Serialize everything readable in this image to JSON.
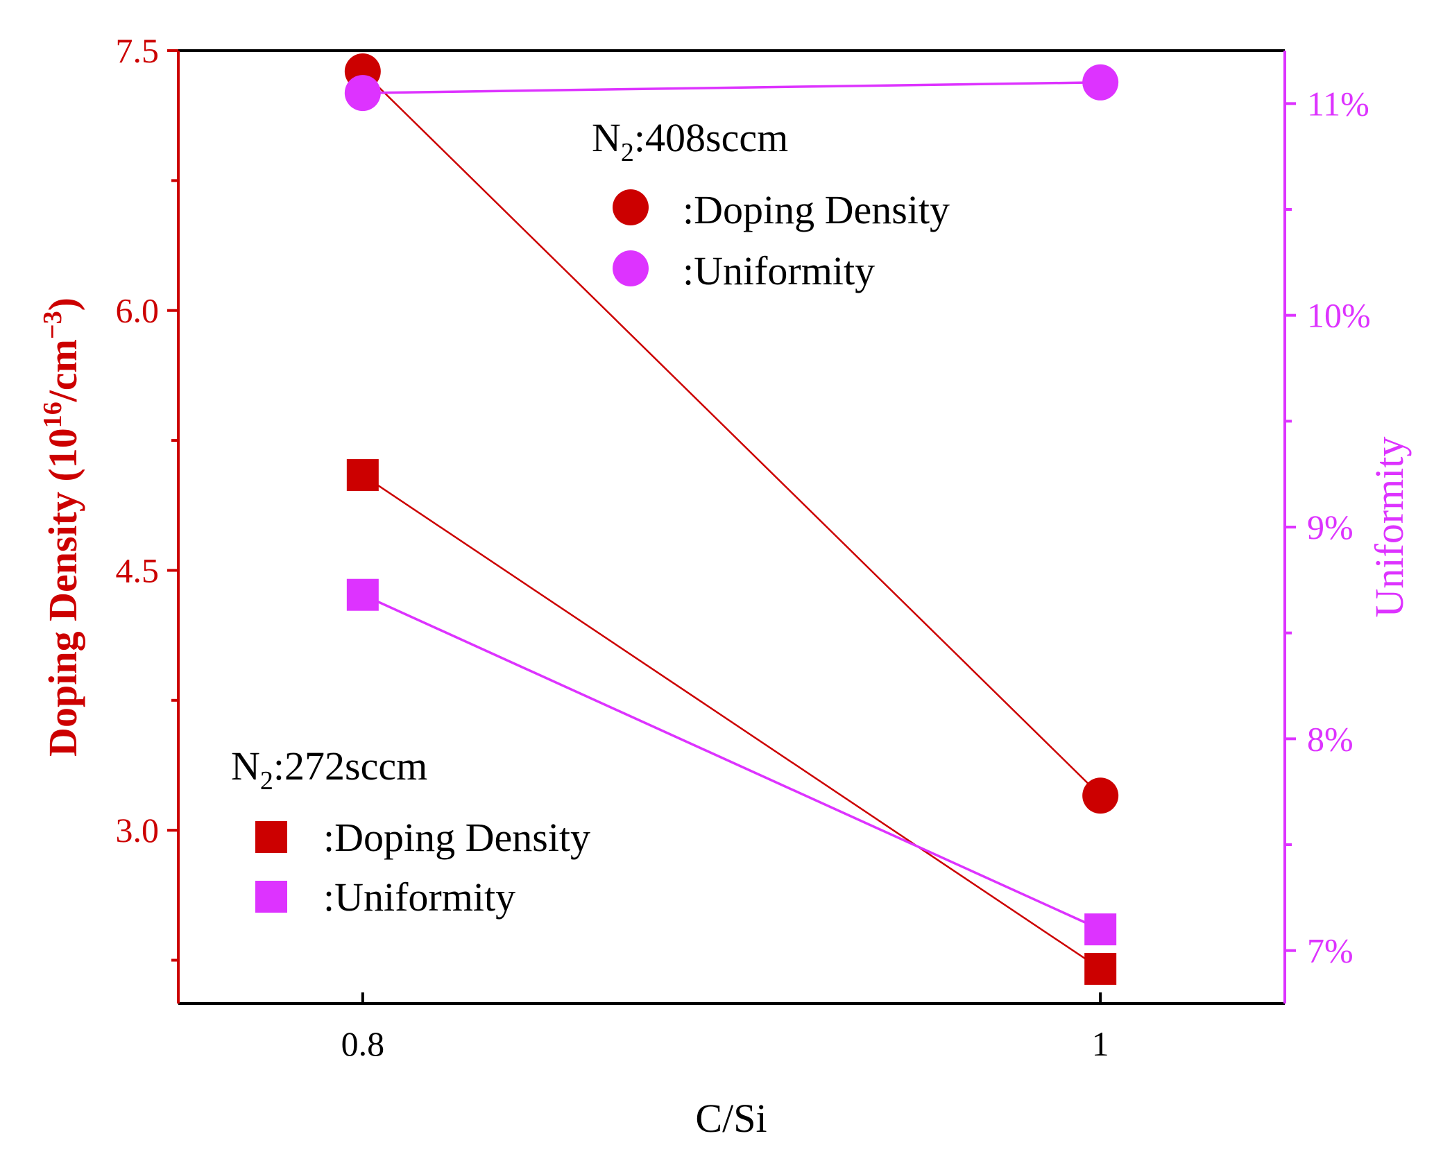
{
  "chart_data": {
    "type": "line",
    "x": [
      0.8,
      1
    ],
    "xlim": [
      0.75,
      1.05
    ],
    "xticks": [
      "0.8",
      "1"
    ],
    "xlabel": "C/Si",
    "y_left": {
      "label_main": "Doping Density (10",
      "label_sup1": "16",
      "label_mid": "/cm",
      "label_sup2": "−3",
      "label_end": ")",
      "lim": [
        2.0,
        7.5
      ],
      "ticks": [
        3.0,
        4.5,
        6.0,
        7.5
      ],
      "tick_labels": [
        "3.0",
        "4.5",
        "6.0",
        "7.5"
      ],
      "minor_ticks": [
        2.25,
        3.75,
        5.25,
        6.75
      ],
      "color": "#cc0000"
    },
    "y_right": {
      "label": "Uniformity",
      "lim": [
        6.75,
        11.25
      ],
      "ticks": [
        7,
        8,
        9,
        10,
        11
      ],
      "tick_labels": [
        "7%",
        "8%",
        "9%",
        "10%",
        "11%"
      ],
      "minor_ticks": [
        7.5,
        8.5,
        9.5,
        10.5
      ],
      "color": "#dd33ff"
    },
    "series": [
      {
        "name": "408sccm Doping Density",
        "axis": "left",
        "marker": "circle",
        "color": "#cc0000",
        "values": [
          7.38,
          3.2
        ]
      },
      {
        "name": "408sccm Uniformity",
        "axis": "right",
        "marker": "circle",
        "color": "#dd33ff",
        "values": [
          11.05,
          11.1
        ]
      },
      {
        "name": "272sccm Doping Density",
        "axis": "left",
        "marker": "square",
        "color": "#cc0000",
        "values": [
          5.05,
          2.2
        ]
      },
      {
        "name": "272sccm Uniformity",
        "axis": "right",
        "marker": "square",
        "color": "#dd33ff",
        "values": [
          8.68,
          7.1
        ]
      }
    ],
    "legends": [
      {
        "title_main": "N",
        "title_sub": "2",
        "title_rest": ":408sccm",
        "entries": [
          {
            "label": ":Doping Density",
            "marker": "circle",
            "color": "#cc0000"
          },
          {
            "label": ":Uniformity",
            "marker": "circle",
            "color": "#dd33ff"
          }
        ]
      },
      {
        "title_main": "N",
        "title_sub": "2",
        "title_rest": ":272sccm",
        "entries": [
          {
            "label": ":Doping Density",
            "marker": "square",
            "color": "#cc0000"
          },
          {
            "label": ":Uniformity",
            "marker": "square",
            "color": "#dd33ff"
          }
        ]
      }
    ]
  }
}
